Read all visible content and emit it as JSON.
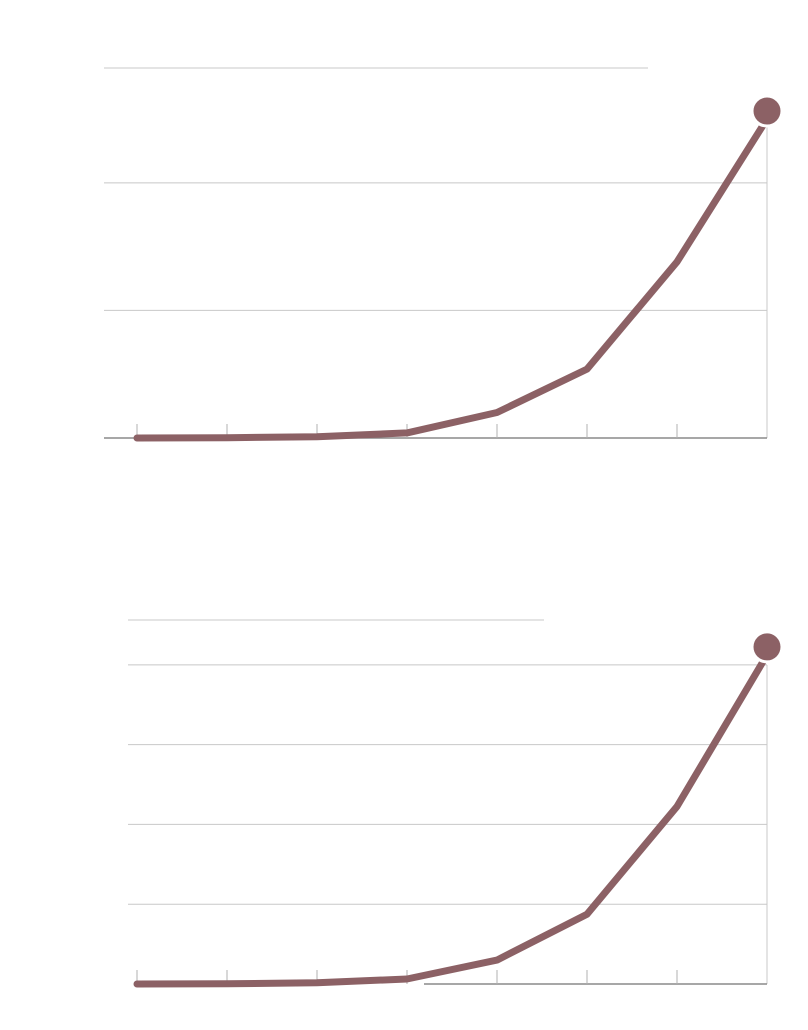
{
  "colors": {
    "series": "#8c6165",
    "background": "#ffffff",
    "gridline": "#c8c8c8",
    "axis": "#8a8a8a"
  },
  "chart_data": [
    {
      "type": "line",
      "x": [
        1,
        2,
        3,
        4,
        5,
        6,
        7,
        8
      ],
      "series": [
        {
          "values": [
            0,
            0.1,
            0.5,
            2,
            10,
            27,
            69,
            125
          ]
        }
      ],
      "ylim": [
        0,
        145
      ],
      "gridlines_y": [
        50,
        100
      ],
      "grid": true,
      "end_marker": true
    },
    {
      "type": "line",
      "x": [
        1,
        2,
        3,
        4,
        5,
        6,
        7,
        8
      ],
      "series": [
        {
          "values": [
            0,
            0.1,
            0.6,
            2.5,
            12,
            35,
            89,
            165
          ]
        }
      ],
      "ylim": [
        0,
        185
      ],
      "gridlines_y": [
        40,
        80,
        120,
        160
      ],
      "grid": true,
      "end_marker": true
    }
  ]
}
